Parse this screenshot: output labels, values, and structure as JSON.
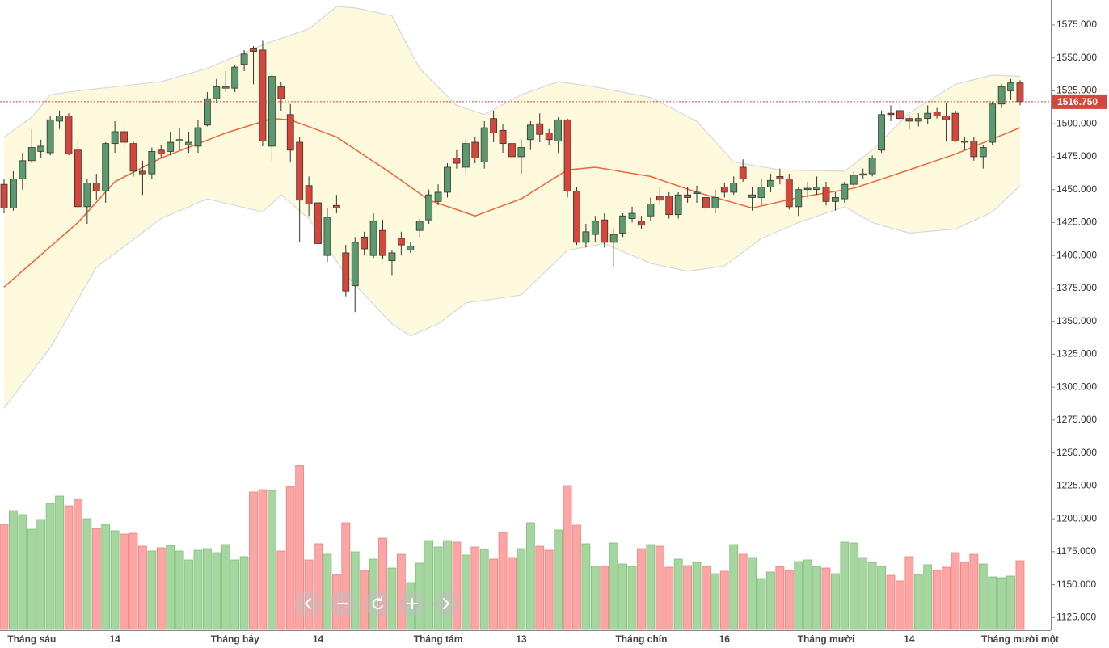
{
  "chart_data": {
    "type": "candlestick",
    "categories": [
      null,
      null,
      null,
      "Tháng sáu",
      null,
      null,
      null,
      null,
      null,
      null,
      null,
      null,
      "14",
      null,
      null,
      null,
      null,
      null,
      null,
      null,
      null,
      null,
      null,
      null,
      null,
      "Tháng bảy",
      null,
      null,
      null,
      null,
      null,
      null,
      null,
      null,
      "14",
      null,
      null,
      null,
      null,
      null,
      null,
      null,
      null,
      null,
      null,
      null,
      null,
      "Tháng tám",
      null,
      null,
      null,
      null,
      null,
      null,
      null,
      null,
      "13",
      null,
      null,
      null,
      null,
      null,
      null,
      null,
      null,
      null,
      null,
      null,
      null,
      "Tháng chín",
      null,
      null,
      null,
      null,
      null,
      null,
      null,
      null,
      "16",
      null,
      null,
      null,
      null,
      null,
      null,
      null,
      null,
      null,
      null,
      "Tháng mười",
      null,
      null,
      null,
      null,
      null,
      null,
      null,
      null,
      "14",
      null,
      null,
      null,
      null,
      null,
      null,
      null,
      null,
      null,
      null,
      null,
      "Tháng mười một"
    ],
    "open": [
      1454,
      1436,
      1458,
      1472,
      1479,
      1478,
      1502,
      1506,
      1480,
      1437,
      1455,
      1449,
      1485,
      1494,
      1485,
      1464,
      1462,
      1480,
      1479,
      1487,
      1484,
      1483,
      1499,
      1519,
      1527,
      1527,
      1545,
      1557,
      1556,
      1483,
      1528,
      1507,
      1486,
      1453,
      1440,
      1400,
      1438,
      1402,
      1377,
      1414,
      1400,
      1419,
      1396,
      1413,
      1404,
      1419,
      1427,
      1441,
      1448,
      1474,
      1467,
      1486,
      1471,
      1504,
      1495,
      1485,
      1475,
      1488,
      1500,
      1493,
      1487,
      1503,
      1449,
      1410,
      1416,
      1427,
      1410,
      1417,
      1428,
      1426,
      1430,
      1445,
      1445,
      1431,
      1446,
      1447,
      1444,
      1436,
      1452,
      1448,
      1467,
      1444,
      1444,
      1452,
      1460,
      1458,
      1437,
      1450,
      1450,
      1452,
      1441,
      1443,
      1454,
      1461,
      1462,
      1480,
      1508,
      1510,
      1504,
      1502,
      1504,
      1509,
      1506,
      1508,
      1487,
      1487,
      1475,
      1486,
      1515,
      1525,
      1531
    ],
    "high": [
      1458,
      1464,
      1478,
      1496,
      1488,
      1506,
      1510,
      1508,
      1488,
      1458,
      1462,
      1486,
      1502,
      1498,
      1487,
      1472,
      1482,
      1484,
      1494,
      1497,
      1494,
      1503,
      1524,
      1534,
      1540,
      1545,
      1556,
      1559,
      1563,
      1538,
      1532,
      1515,
      1490,
      1460,
      1444,
      1436,
      1446,
      1408,
      1414,
      1418,
      1432,
      1427,
      1404,
      1418,
      1410,
      1428,
      1450,
      1454,
      1470,
      1480,
      1488,
      1490,
      1502,
      1510,
      1500,
      1490,
      1488,
      1502,
      1508,
      1496,
      1505,
      1504,
      1452,
      1424,
      1430,
      1432,
      1420,
      1432,
      1437,
      1430,
      1444,
      1452,
      1448,
      1448,
      1452,
      1453,
      1446,
      1450,
      1455,
      1460,
      1473,
      1452,
      1458,
      1462,
      1466,
      1462,
      1452,
      1456,
      1460,
      1456,
      1448,
      1456,
      1464,
      1466,
      1476,
      1510,
      1514,
      1516,
      1506,
      1508,
      1514,
      1512,
      1516,
      1510,
      1490,
      1490,
      1484,
      1517,
      1530,
      1534,
      1533
    ],
    "low": [
      1432,
      1434,
      1450,
      1470,
      1474,
      1476,
      1496,
      1476,
      1436,
      1424,
      1442,
      1440,
      1478,
      1480,
      1460,
      1446,
      1458,
      1474,
      1476,
      1480,
      1478,
      1478,
      1498,
      1516,
      1524,
      1524,
      1540,
      1530,
      1483,
      1472,
      1510,
      1471,
      1410,
      1430,
      1400,
      1395,
      1432,
      1369,
      1357,
      1400,
      1398,
      1397,
      1385,
      1400,
      1402,
      1414,
      1424,
      1438,
      1444,
      1466,
      1462,
      1470,
      1466,
      1486,
      1478,
      1470,
      1462,
      1480,
      1486,
      1484,
      1478,
      1444,
      1408,
      1406,
      1410,
      1406,
      1392,
      1414,
      1425,
      1420,
      1426,
      1438,
      1428,
      1428,
      1440,
      1440,
      1432,
      1432,
      1444,
      1446,
      1456,
      1434,
      1438,
      1448,
      1454,
      1435,
      1430,
      1444,
      1446,
      1438,
      1434,
      1440,
      1452,
      1458,
      1460,
      1478,
      1502,
      1500,
      1496,
      1498,
      1500,
      1504,
      1487,
      1486,
      1480,
      1472,
      1466,
      1484,
      1512,
      1518,
      1514
    ],
    "close": [
      1436,
      1458,
      1472,
      1482,
      1483,
      1503,
      1506,
      1477,
      1437,
      1455,
      1449,
      1485,
      1494,
      1486,
      1464,
      1462,
      1479,
      1477,
      1486,
      1488,
      1486,
      1497,
      1519,
      1528,
      1528,
      1543,
      1553,
      1555,
      1487,
      1536,
      1519,
      1480,
      1442,
      1439,
      1409,
      1429,
      1436,
      1373,
      1410,
      1405,
      1426,
      1400,
      1402,
      1408,
      1407,
      1426,
      1446,
      1448,
      1467,
      1470,
      1485,
      1474,
      1497,
      1493,
      1485,
      1475,
      1482,
      1499,
      1492,
      1488,
      1503,
      1449,
      1410,
      1418,
      1426,
      1410,
      1416,
      1430,
      1432,
      1423,
      1439,
      1442,
      1431,
      1446,
      1444,
      1448,
      1436,
      1444,
      1448,
      1455,
      1458,
      1446,
      1452,
      1457,
      1458,
      1437,
      1450,
      1451,
      1452,
      1441,
      1444,
      1454,
      1461,
      1462,
      1474,
      1507,
      1507,
      1504,
      1502,
      1504,
      1508,
      1506,
      1503,
      1487,
      1486,
      1475,
      1482,
      1515,
      1528,
      1531,
      1516.75
    ],
    "volume": [
      130,
      147,
      142,
      124,
      136,
      156,
      165,
      153,
      161,
      137,
      125,
      130,
      122,
      118,
      119,
      103,
      97,
      101,
      104,
      97,
      86,
      98,
      100,
      95,
      105,
      86,
      90,
      170,
      173,
      172,
      97,
      177,
      203,
      86,
      106,
      93,
      68,
      132,
      96,
      73,
      87,
      113,
      76,
      93,
      58,
      82,
      110,
      102,
      110,
      108,
      92,
      102,
      99,
      87,
      120,
      89,
      100,
      132,
      103,
      98,
      123,
      178,
      129,
      106,
      78,
      78,
      107,
      81,
      78,
      100,
      105,
      103,
      77,
      87,
      79,
      83,
      78,
      69,
      72,
      105,
      93,
      89,
      63,
      71,
      78,
      73,
      84,
      86,
      78,
      76,
      69,
      108,
      107,
      89,
      83,
      78,
      67,
      60,
      90,
      68,
      80,
      73,
      77,
      95,
      83,
      93,
      81,
      65,
      64,
      66,
      85
    ],
    "volume_ylim": [
      0,
      250
    ],
    "ma": {
      "color": "#f4623a",
      "x": [
        0,
        8,
        12,
        17,
        24,
        29,
        31,
        36,
        42,
        46,
        51,
        56,
        61,
        64,
        70,
        75,
        81,
        86,
        92,
        98,
        103,
        110
      ],
      "values": [
        1376,
        1425,
        1456,
        1474,
        1493,
        1504,
        1503,
        1490,
        1462,
        1442,
        1430,
        1443,
        1465,
        1467,
        1460,
        1448,
        1436,
        1444,
        1451,
        1465,
        1477,
        1497
      ]
    },
    "bb_upper": {
      "x": [
        0,
        3,
        5,
        8,
        17,
        22,
        28,
        33,
        36,
        38,
        42,
        45,
        49,
        52,
        56,
        60,
        64,
        70,
        75,
        79,
        84,
        91,
        94,
        98,
        103,
        107,
        110
      ],
      "values": [
        1490,
        1505,
        1522,
        1525,
        1532,
        1542,
        1560,
        1572,
        1589,
        1588,
        1582,
        1542,
        1514,
        1507,
        1522,
        1532,
        1528,
        1520,
        1502,
        1471,
        1465,
        1464,
        1480,
        1508,
        1530,
        1537,
        1536
      ]
    },
    "bb_lower": {
      "x": [
        0,
        5,
        10,
        17,
        22,
        28,
        30,
        33,
        37,
        42,
        44,
        47,
        50,
        56,
        61,
        65,
        70,
        74,
        78,
        82,
        86,
        91,
        94,
        98,
        103,
        107,
        110
      ],
      "values": [
        1284,
        1330,
        1391,
        1428,
        1443,
        1433,
        1446,
        1428,
        1385,
        1348,
        1339,
        1348,
        1364,
        1370,
        1404,
        1409,
        1394,
        1388,
        1392,
        1413,
        1425,
        1437,
        1425,
        1417,
        1420,
        1433,
        1453
      ]
    },
    "band_color": "#fdf9dc",
    "up_color": "#5b9a6f",
    "down_color": "#d6463b",
    "up_volume_color": "#a5d6a0",
    "down_volume_color": "#fca5a5",
    "last_price": {
      "value": 1516.75,
      "label": "1516.750"
    },
    "ylim": [
      1594,
      1116
    ],
    "yticks": [
      {
        "value": 1575,
        "label": "1575.000"
      },
      {
        "value": 1550,
        "label": "1550.000"
      },
      {
        "value": 1525,
        "label": "1525.000"
      },
      {
        "value": 1500,
        "label": "1500.000"
      },
      {
        "value": 1475,
        "label": "1475.000"
      },
      {
        "value": 1450,
        "label": "1450.000"
      },
      {
        "value": 1425,
        "label": "1425.000"
      },
      {
        "value": 1400,
        "label": "1400.000"
      },
      {
        "value": 1375,
        "label": "1375.000"
      },
      {
        "value": 1350,
        "label": "1350.000"
      },
      {
        "value": 1325,
        "label": "1325.000"
      },
      {
        "value": 1300,
        "label": "1300.000"
      },
      {
        "value": 1275,
        "label": "1275.000"
      },
      {
        "value": 1250,
        "label": "1250.000"
      },
      {
        "value": 1225,
        "label": "1225.000"
      },
      {
        "value": 1200,
        "label": "1200.000"
      },
      {
        "value": 1175,
        "label": "1175.000"
      },
      {
        "value": 1150,
        "label": "1150.000"
      },
      {
        "value": 1125,
        "label": "1125.000"
      }
    ]
  }
}
